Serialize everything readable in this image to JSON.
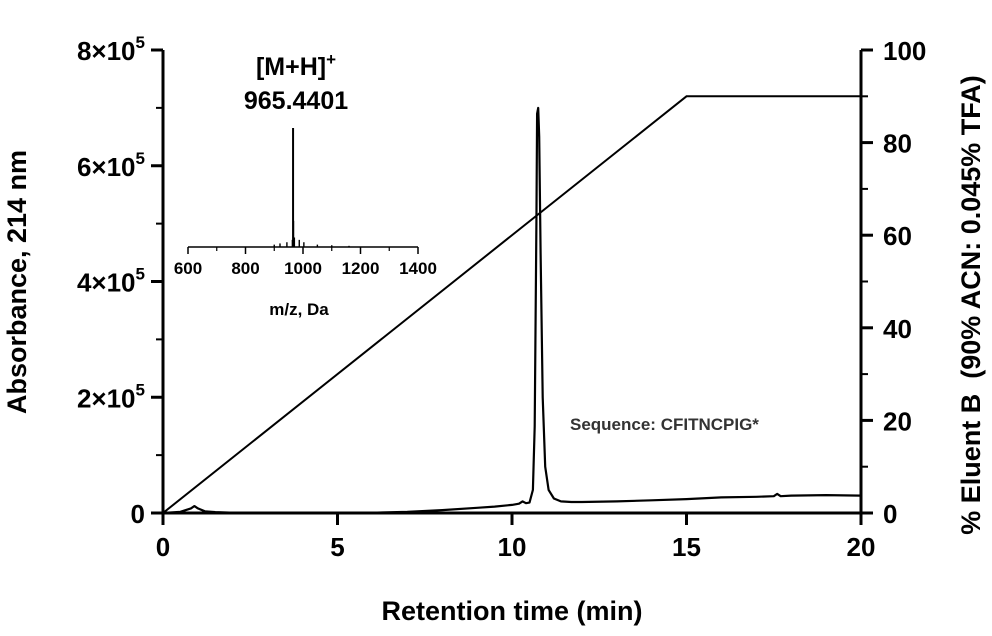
{
  "chart_data": {
    "type": "line",
    "xlabel": "Retention time (min)",
    "ylabel": "Absorbance, 214 nm",
    "y2label": "% Eluent B  (90% ACN: 0.045% TFA)",
    "xlim": [
      0,
      20
    ],
    "ylim": [
      0,
      800000
    ],
    "y2lim": [
      0,
      100
    ],
    "x_ticks": [
      "0",
      "5",
      "10",
      "15",
      "20"
    ],
    "y_ticks": [
      {
        "mantissa": "0",
        "exp": ""
      },
      {
        "mantissa": "2×10",
        "exp": "5"
      },
      {
        "mantissa": "4×10",
        "exp": "5"
      },
      {
        "mantissa": "6×10",
        "exp": "5"
      },
      {
        "mantissa": "8×10",
        "exp": "5"
      }
    ],
    "y2_ticks": [
      "0",
      "20",
      "40",
      "60",
      "80",
      "100"
    ],
    "grid": false,
    "series": [
      {
        "axis": "left",
        "x": [
          0.0,
          0.5,
          0.8,
          0.9,
          1.0,
          1.2,
          1.5,
          2.0,
          3.0,
          4.0,
          5.0,
          6.0,
          7.0,
          8.0,
          9.0,
          9.5,
          10.0,
          10.2,
          10.3,
          10.4,
          10.5,
          10.6,
          10.65,
          10.7,
          10.72,
          10.75,
          10.78,
          10.82,
          10.88,
          10.95,
          11.05,
          11.2,
          11.4,
          11.7,
          12.0,
          13.0,
          14.0,
          15.0,
          16.0,
          17.0,
          17.5,
          17.6,
          17.7,
          18.0,
          19.0,
          20.0
        ],
        "y": [
          0,
          2000,
          8000,
          12000,
          8000,
          3000,
          1500,
          500,
          0,
          0,
          0,
          500,
          2000,
          5000,
          9000,
          11000,
          14000,
          16000,
          20000,
          17000,
          18000,
          40000,
          150000,
          500000,
          690000,
          700000,
          650000,
          450000,
          200000,
          80000,
          40000,
          25000,
          20000,
          19000,
          19000,
          20000,
          22000,
          24000,
          27000,
          28000,
          29000,
          33000,
          29000,
          30000,
          31000,
          30000
        ]
      },
      {
        "axis": "right",
        "x": [
          0,
          15,
          20
        ],
        "y": [
          0,
          90,
          90
        ]
      }
    ],
    "inset": {
      "type": "line",
      "xlabel": "m/z, Da",
      "xlim": [
        600,
        1400
      ],
      "x_ticks": [
        "600",
        "800",
        "1000",
        "1200",
        "1400"
      ],
      "peak_label": "[M+H]",
      "peak_label_sup": "+",
      "peak_mz_label": "965.4401",
      "peaks": [
        {
          "mz": 900,
          "rel": 0.02
        },
        {
          "mz": 920,
          "rel": 0.03
        },
        {
          "mz": 944,
          "rel": 0.04
        },
        {
          "mz": 963,
          "rel": 0.06
        },
        {
          "mz": 965.4401,
          "rel": 1.0
        },
        {
          "mz": 967,
          "rel": 0.22
        },
        {
          "mz": 970,
          "rel": 0.08
        },
        {
          "mz": 987,
          "rel": 0.06
        },
        {
          "mz": 1003,
          "rel": 0.04
        },
        {
          "mz": 1050,
          "rel": 0.02
        },
        {
          "mz": 1100,
          "rel": 0.015
        },
        {
          "mz": 1160,
          "rel": 0.01
        }
      ]
    },
    "annotation": "Sequence: CFITNCPIG*"
  }
}
